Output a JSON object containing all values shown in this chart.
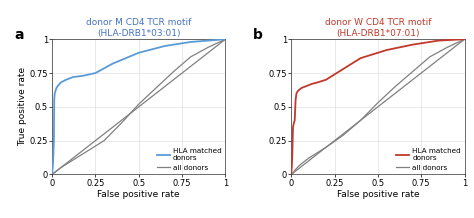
{
  "panel_a": {
    "title_line1": "donor M CD4 TCR motif",
    "title_line2": "(HLA-DRB1*03:01)",
    "title_color": "#4472C4",
    "label": "a",
    "hla_color": "#5B9BD5",
    "diag_color": "#808080",
    "hla_curve_x": [
      0,
      0.005,
      0.01,
      0.012,
      0.015,
      0.02,
      0.025,
      0.03,
      0.05,
      0.08,
      0.12,
      0.18,
      0.25,
      0.35,
      0.5,
      0.65,
      0.8,
      0.9,
      1.0
    ],
    "hla_curve_y": [
      0,
      0.08,
      0.25,
      0.55,
      0.6,
      0.62,
      0.64,
      0.65,
      0.68,
      0.7,
      0.72,
      0.73,
      0.75,
      0.82,
      0.9,
      0.95,
      0.98,
      0.99,
      1.0
    ],
    "all_curve_x": [
      0,
      0.01,
      0.02,
      0.05,
      0.1,
      0.2,
      0.3,
      0.4,
      0.5,
      0.6,
      0.7,
      0.8,
      0.9,
      1.0
    ],
    "all_curve_y": [
      0,
      0.01,
      0.02,
      0.05,
      0.09,
      0.17,
      0.25,
      0.38,
      0.52,
      0.64,
      0.76,
      0.87,
      0.94,
      1.0
    ],
    "legend_hla": "HLA matched\ndonors",
    "legend_all": "all donors"
  },
  "panel_b": {
    "title_line1": "donor W CD4 TCR motif",
    "title_line2": "(HLA-DRB1*07:01)",
    "title_color": "#C0392B",
    "label": "b",
    "hla_color": "#C0392B",
    "diag_color": "#808080",
    "hla_curve_x": [
      0,
      0.003,
      0.006,
      0.008,
      0.01,
      0.015,
      0.02,
      0.025,
      0.03,
      0.04,
      0.05,
      0.06,
      0.08,
      0.1,
      0.12,
      0.15,
      0.2,
      0.3,
      0.4,
      0.55,
      0.7,
      0.85,
      1.0
    ],
    "hla_curve_y": [
      0,
      0.05,
      0.15,
      0.25,
      0.35,
      0.38,
      0.4,
      0.55,
      0.6,
      0.62,
      0.63,
      0.64,
      0.65,
      0.66,
      0.67,
      0.68,
      0.7,
      0.78,
      0.86,
      0.92,
      0.96,
      0.99,
      1.0
    ],
    "all_curve_x": [
      0,
      0.01,
      0.02,
      0.05,
      0.1,
      0.2,
      0.3,
      0.4,
      0.5,
      0.6,
      0.7,
      0.8,
      0.9,
      1.0
    ],
    "all_curve_y": [
      0,
      0.01,
      0.03,
      0.07,
      0.12,
      0.2,
      0.29,
      0.4,
      0.53,
      0.65,
      0.76,
      0.87,
      0.94,
      1.0
    ],
    "legend_hla": "HLA matched\ndonors",
    "legend_all": "all donors"
  },
  "xlabel": "False positive rate",
  "ylabel": "True positive rate",
  "xticks": [
    0,
    0.25,
    0.5,
    0.75,
    1
  ],
  "yticks": [
    0,
    0.25,
    0.5,
    0.75,
    1
  ],
  "xtick_labels": [
    "0",
    "0.25",
    "0.5",
    "0.75",
    "1"
  ],
  "ytick_labels": [
    "0",
    "0.25",
    "0.5",
    "0.75",
    "1"
  ],
  "xlim": [
    0,
    1.0
  ],
  "ylim": [
    0,
    1.0
  ],
  "background_color": "#FFFFFF",
  "grid_color": "#E0E0E0"
}
